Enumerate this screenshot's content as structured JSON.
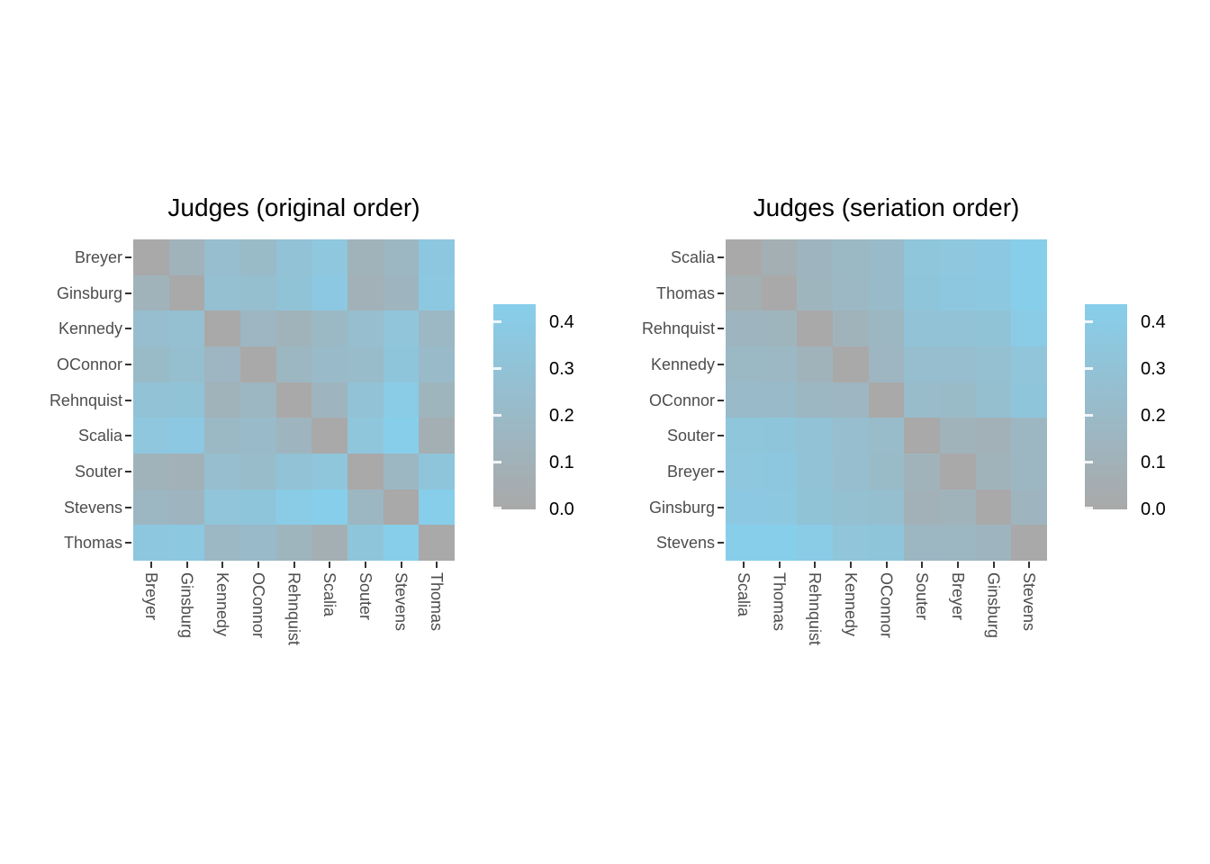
{
  "figure": {
    "background": "#ffffff",
    "axis_text_color": "#4d4d4d",
    "tick_color": "#333333",
    "title_color": "#000000"
  },
  "scale": {
    "low_color": "#A9A9A9",
    "high_color": "#87CEEB",
    "min": 0,
    "max": 0.438
  },
  "legend": {
    "tick_labels": [
      "0.4",
      "0.3",
      "0.2",
      "0.1",
      "0.0"
    ],
    "tick_values": [
      0.4,
      0.3,
      0.2,
      0.1,
      0.0
    ]
  },
  "chart_data": [
    {
      "type": "heatmap",
      "title": "Judges (original order)",
      "y_categories": [
        "Breyer",
        "Ginsburg",
        "Kennedy",
        "OConnor",
        "Rehnquist",
        "Scalia",
        "Souter",
        "Stevens",
        "Thomas"
      ],
      "x_categories": [
        "Breyer",
        "Ginsburg",
        "Kennedy",
        "OConnor",
        "Rehnquist",
        "Scalia",
        "Souter",
        "Stevens",
        "Thomas"
      ],
      "matrix": [
        [
          0.0,
          0.12,
          0.25,
          0.209,
          0.299,
          0.353,
          0.118,
          0.162,
          0.359
        ],
        [
          0.12,
          0.0,
          0.267,
          0.252,
          0.308,
          0.37,
          0.096,
          0.145,
          0.368
        ],
        [
          0.25,
          0.267,
          0.0,
          0.156,
          0.122,
          0.188,
          0.248,
          0.327,
          0.177
        ],
        [
          0.209,
          0.252,
          0.156,
          0.0,
          0.162,
          0.207,
          0.22,
          0.329,
          0.205
        ],
        [
          0.299,
          0.308,
          0.122,
          0.162,
          0.0,
          0.143,
          0.293,
          0.402,
          0.137
        ],
        [
          0.353,
          0.37,
          0.188,
          0.207,
          0.143,
          0.0,
          0.338,
          0.438,
          0.066
        ],
        [
          0.118,
          0.096,
          0.248,
          0.22,
          0.293,
          0.338,
          0.0,
          0.169,
          0.331
        ],
        [
          0.162,
          0.145,
          0.327,
          0.329,
          0.402,
          0.438,
          0.169,
          0.0,
          0.436
        ],
        [
          0.359,
          0.368,
          0.177,
          0.205,
          0.137,
          0.066,
          0.331,
          0.436,
          0.0
        ]
      ],
      "color_low": "#A9A9A9",
      "color_high": "#87CEEB",
      "colorbar_ticks": [
        "0.4",
        "0.3",
        "0.2",
        "0.1",
        "0.0"
      ],
      "legend_position": "right",
      "grid": false
    },
    {
      "type": "heatmap",
      "title": "Judges (seriation order)",
      "y_categories": [
        "Scalia",
        "Thomas",
        "Rehnquist",
        "Kennedy",
        "OConnor",
        "Souter",
        "Breyer",
        "Ginsburg",
        "Stevens"
      ],
      "x_categories": [
        "Scalia",
        "Thomas",
        "Rehnquist",
        "Kennedy",
        "OConnor",
        "Souter",
        "Breyer",
        "Ginsburg",
        "Stevens"
      ],
      "matrix": [
        [
          0.0,
          0.066,
          0.143,
          0.188,
          0.207,
          0.338,
          0.353,
          0.37,
          0.438
        ],
        [
          0.066,
          0.0,
          0.137,
          0.177,
          0.205,
          0.331,
          0.359,
          0.368,
          0.436
        ],
        [
          0.143,
          0.137,
          0.0,
          0.122,
          0.162,
          0.293,
          0.299,
          0.308,
          0.402
        ],
        [
          0.188,
          0.177,
          0.122,
          0.0,
          0.156,
          0.248,
          0.25,
          0.267,
          0.327
        ],
        [
          0.207,
          0.205,
          0.162,
          0.156,
          0.0,
          0.22,
          0.209,
          0.252,
          0.329
        ],
        [
          0.338,
          0.331,
          0.293,
          0.248,
          0.22,
          0.0,
          0.118,
          0.096,
          0.169
        ],
        [
          0.353,
          0.359,
          0.299,
          0.25,
          0.209,
          0.118,
          0.0,
          0.12,
          0.162
        ],
        [
          0.37,
          0.368,
          0.308,
          0.267,
          0.252,
          0.096,
          0.12,
          0.0,
          0.145
        ],
        [
          0.438,
          0.436,
          0.402,
          0.327,
          0.329,
          0.169,
          0.162,
          0.145,
          0.0
        ]
      ],
      "color_low": "#A9A9A9",
      "color_high": "#87CEEB",
      "colorbar_ticks": [
        "0.4",
        "0.3",
        "0.2",
        "0.1",
        "0.0"
      ],
      "legend_position": "right",
      "grid": false
    }
  ]
}
